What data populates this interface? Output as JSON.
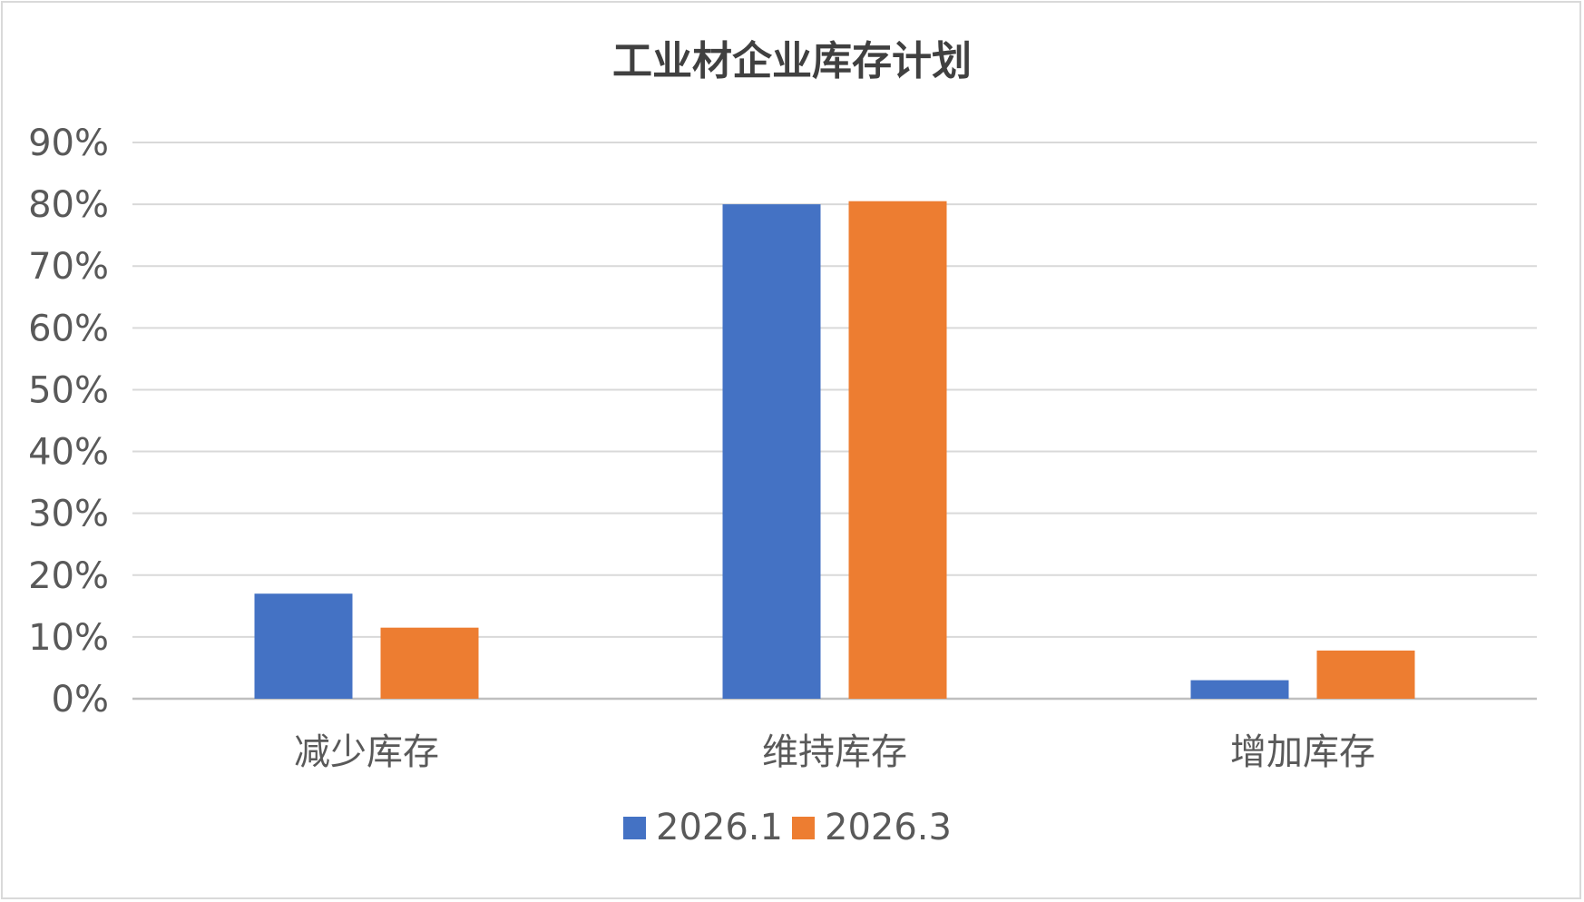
{
  "chart_data": {
    "type": "bar",
    "title": "工业材企业库存计划",
    "xlabel": "",
    "ylabel": "",
    "categories": [
      "减少库存",
      "维持库存",
      "增加库存"
    ],
    "series": [
      {
        "name": "2026.1",
        "color": "#4472c4",
        "values": [
          17,
          80,
          3
        ]
      },
      {
        "name": "2026.3",
        "color": "#ed7d31",
        "values": [
          11.5,
          80.5,
          7.8
        ]
      }
    ],
    "ylim": [
      0,
      90
    ],
    "yticks": [
      "0%",
      "10%",
      "20%",
      "30%",
      "40%",
      "50%",
      "60%",
      "70%",
      "80%",
      "90%"
    ],
    "grid": true,
    "legend_position": "bottom"
  }
}
